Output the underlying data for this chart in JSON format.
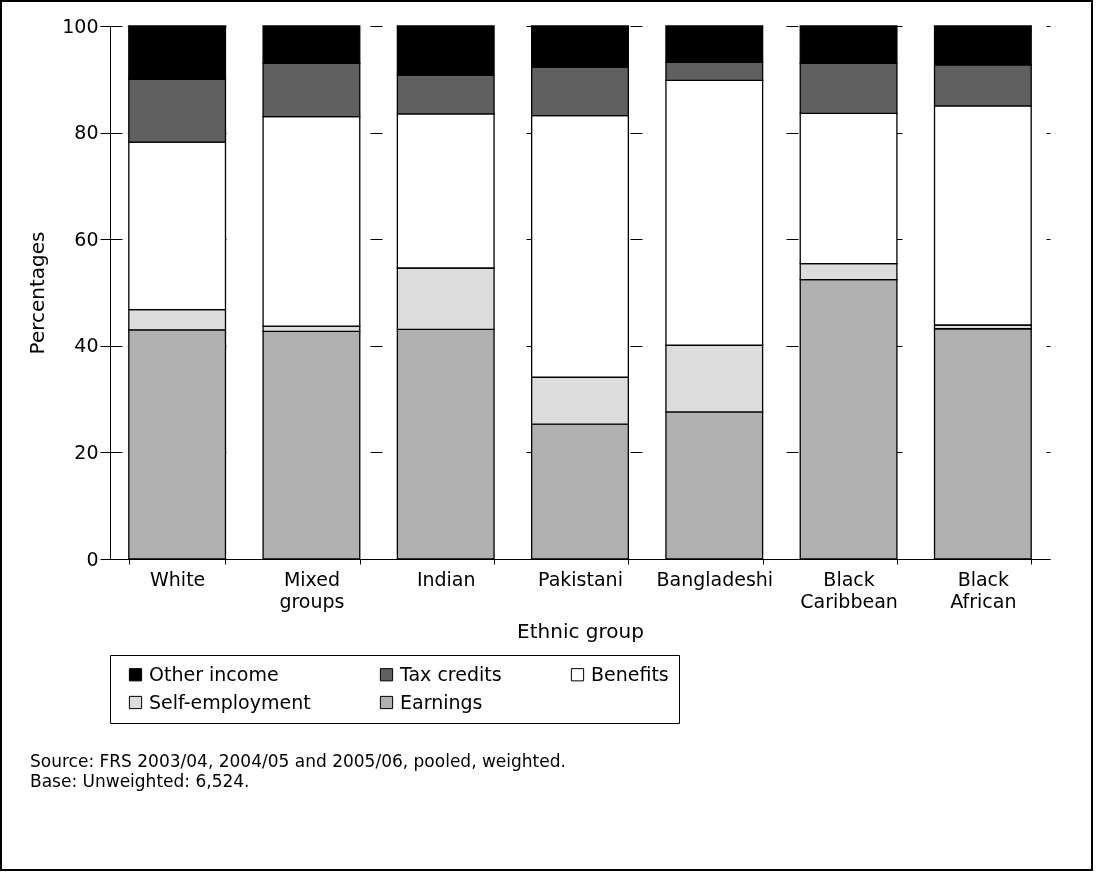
{
  "chart_data": {
    "type": "bar",
    "stacked": true,
    "xlabel": "Ethnic group",
    "ylabel": "Percentages",
    "categories": [
      "White",
      "Mixed groups",
      "Indian",
      "Pakistani",
      "Bangladeshi",
      "Black Caribbean",
      "Black African"
    ],
    "series": [
      {
        "name": "Earnings",
        "color": "#b0b0b0",
        "values": [
          43,
          42.7,
          43.1,
          25.3,
          27.6,
          52.4,
          43.2
        ]
      },
      {
        "name": "Self-employment",
        "color": "#dcdcdc",
        "values": [
          3.8,
          1.0,
          11.5,
          8.8,
          12.5,
          3.0,
          0.7
        ]
      },
      {
        "name": "Benefits",
        "color": "#ffffff",
        "values": [
          31.4,
          39.3,
          28.9,
          49.1,
          49.7,
          28.2,
          41.1
        ]
      },
      {
        "name": "Tax credits",
        "color": "#606060",
        "values": [
          11.8,
          10,
          7.3,
          9.1,
          3.4,
          9.4,
          7.7
        ]
      },
      {
        "name": "Other income",
        "color": "#000000",
        "values": [
          10,
          7,
          9.2,
          7.7,
          6.8,
          7,
          7.3
        ]
      }
    ],
    "ylim": [
      0,
      100
    ],
    "yticks": [
      0,
      20,
      40,
      60,
      80,
      100
    ],
    "grid": "y",
    "legend": "bottom",
    "annotations": [
      "Source: FRS 2003/04, 2004/05 and 2005/06, pooled, weighted.",
      "Base: Unweighted: 6,524."
    ]
  }
}
